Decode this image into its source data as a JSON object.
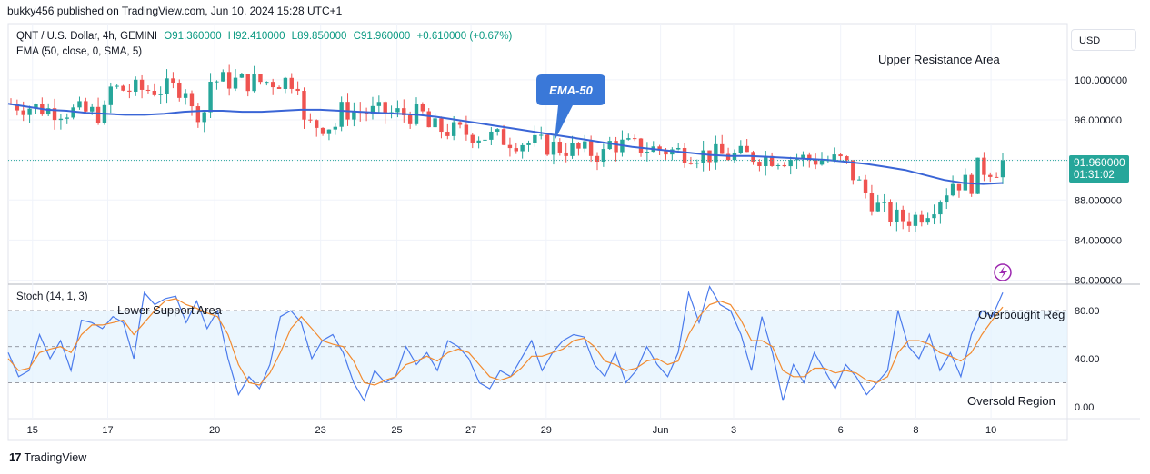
{
  "header": {
    "publisher": "bukky456 published on TradingView.com, Jun 10, 2024 15:28 UTC+1",
    "symbol": "QNT / U.S. Dollar, 4h, GEMINI",
    "open": "O91.360000",
    "high": "H92.410000",
    "low": "L89.850000",
    "close": "C91.960000",
    "change": "+0.610000 (+0.67%)",
    "indicator": "EMA (50, close, 0, SMA, 5)"
  },
  "currency": "USD",
  "price_label": {
    "price": "91.960000",
    "countdown": "01:31:02"
  },
  "annotations": {
    "upper_resistance": "Upper Resistance Area",
    "ema_callout": "EMA-50",
    "lower_support": "Lower Support Area",
    "overbought": "Overbought Reg",
    "oversold": "Oversold Region"
  },
  "stoch": {
    "title": "Stoch (14, 1, 3)"
  },
  "brand": "TradingView",
  "colors": {
    "up": "#26a69a",
    "down": "#ef5350",
    "ema": "#3a65d6",
    "stoch_k": "#4b7bec",
    "stoch_d": "#f28b30",
    "band": "#e3f2fd"
  },
  "chart_data": [
    {
      "type": "candlestick",
      "title": "QNT / U.S. Dollar, 4h, GEMINI",
      "y_tick_labels": [
        "100.000000",
        "96.000000",
        "92.000000",
        "88.000000",
        "84.000000",
        "80.000000"
      ],
      "y_ticks": [
        100,
        96,
        92,
        88,
        84,
        80
      ],
      "ylim": [
        79.6,
        105.6
      ],
      "x_tick_labels": [
        "15",
        "17",
        "20",
        "23",
        "25",
        "27",
        "29",
        "Jun",
        "3",
        "6",
        "8",
        "10"
      ],
      "last_price": 91.96,
      "ema50": [
        97.6,
        97.3,
        97.0,
        96.9,
        96.7,
        96.6,
        96.5,
        96.5,
        96.6,
        96.8,
        96.9,
        96.9,
        96.8,
        96.8,
        96.9,
        97.0,
        97.0,
        96.9,
        96.8,
        96.7,
        96.6,
        96.5,
        96.3,
        96.0,
        95.7,
        95.4,
        95.1,
        94.8,
        94.5,
        94.2,
        93.9,
        93.6,
        93.3,
        93.1,
        92.9,
        92.7,
        92.5,
        92.4,
        92.4,
        92.3,
        92.2,
        92.1,
        92.0,
        91.8,
        91.6,
        91.3,
        91.0,
        90.5,
        90.0,
        89.7,
        89.6,
        89.7
      ],
      "candles_ohlc_summary": "approximate 4h candles from May 14 to Jun 10, range 82 to 103"
    },
    {
      "type": "line",
      "title": "Stoch (14, 1, 3)",
      "y_tick_labels": [
        "80.00",
        "40.00",
        "0.00"
      ],
      "y_ticks": [
        80,
        40,
        0
      ],
      "ylim": [
        -10,
        102
      ],
      "levels": [
        80,
        50,
        20
      ],
      "series": [
        {
          "name": "%K",
          "values": [
            45,
            25,
            30,
            60,
            40,
            55,
            30,
            72,
            70,
            65,
            75,
            70,
            40,
            95,
            85,
            90,
            92,
            70,
            88,
            65,
            80,
            40,
            10,
            25,
            15,
            35,
            75,
            80,
            70,
            40,
            55,
            60,
            45,
            20,
            5,
            30,
            20,
            25,
            50,
            35,
            45,
            30,
            55,
            50,
            40,
            20,
            15,
            30,
            25,
            40,
            55,
            30,
            45,
            55,
            60,
            58,
            35,
            25,
            45,
            20,
            30,
            50,
            35,
            25,
            45,
            95,
            70,
            100,
            85,
            80,
            60,
            30,
            75,
            45,
            5,
            35,
            20,
            45,
            30,
            15,
            35,
            25,
            10,
            20,
            30,
            80,
            50,
            40,
            60,
            30,
            45,
            25,
            60,
            80,
            75,
            95
          ]
        },
        {
          "name": "%D",
          "values": [
            40,
            30,
            32,
            45,
            48,
            50,
            45,
            60,
            68,
            68,
            70,
            72,
            60,
            70,
            80,
            88,
            90,
            85,
            82,
            78,
            75,
            60,
            35,
            20,
            18,
            28,
            45,
            65,
            75,
            65,
            55,
            52,
            50,
            38,
            20,
            18,
            22,
            25,
            35,
            38,
            42,
            38,
            45,
            48,
            45,
            35,
            25,
            22,
            25,
            32,
            42,
            42,
            45,
            48,
            55,
            57,
            50,
            38,
            35,
            30,
            32,
            38,
            40,
            35,
            38,
            60,
            75,
            85,
            88,
            85,
            72,
            55,
            55,
            50,
            30,
            25,
            25,
            32,
            32,
            28,
            30,
            28,
            22,
            20,
            25,
            45,
            55,
            55,
            52,
            45,
            42,
            38,
            45,
            60,
            72,
            83
          ]
        }
      ]
    }
  ]
}
